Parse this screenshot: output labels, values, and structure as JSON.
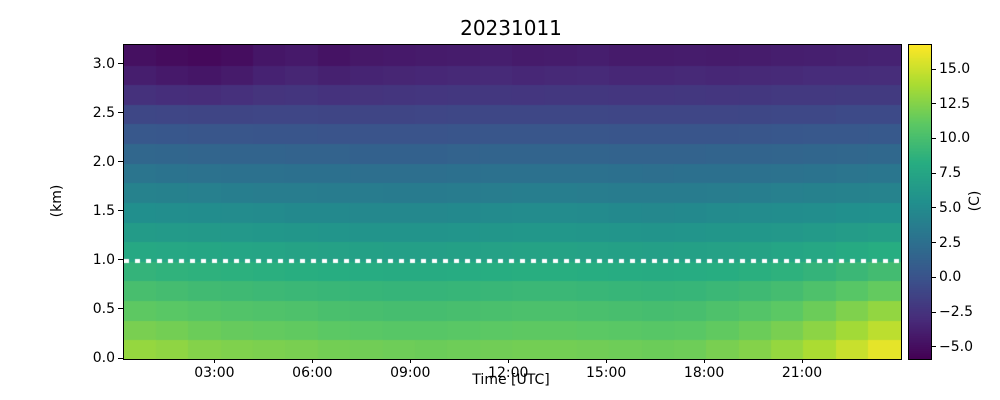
{
  "figure": {
    "background": "#ffffff",
    "dotted_line_color": "#ffffff"
  },
  "chart_data": {
    "type": "heatmap",
    "title": "20231011",
    "xlabel": "Time [UTC]",
    "ylabel": "(km)",
    "colorbar_label": "(C)",
    "colormap": "viridis",
    "vmin": -5.8,
    "vmax": 16.8,
    "x_range_hours": [
      0.2,
      24.0
    ],
    "y_range_km": [
      0.0,
      3.2
    ],
    "xtick_hours": [
      3,
      6,
      9,
      12,
      15,
      18,
      21
    ],
    "xtick_labels": [
      "03:00",
      "06:00",
      "09:00",
      "12:00",
      "15:00",
      "18:00",
      "21:00"
    ],
    "ytick_km": [
      0.0,
      0.5,
      1.0,
      1.5,
      2.0,
      2.5,
      3.0
    ],
    "ytick_labels": [
      "0.0",
      "0.5",
      "1.0",
      "1.5",
      "2.0",
      "2.5",
      "3.0"
    ],
    "colorbar_tick_values": [
      15.0,
      12.5,
      10.0,
      7.5,
      5.0,
      2.5,
      0.0,
      -2.5,
      -5.0
    ],
    "colorbar_tick_labels": [
      "15.0",
      "12.5",
      "10.0",
      "7.5",
      "5.0",
      "2.5",
      "0.0",
      "−2.5",
      "−5.0"
    ],
    "dotted_line_km": 1.0,
    "x_hours": [
      0.5,
      1.5,
      2.5,
      3.5,
      4.5,
      5.5,
      6.5,
      7.5,
      8.5,
      9.5,
      10.5,
      11.5,
      12.5,
      13.5,
      14.5,
      15.5,
      16.5,
      17.5,
      18.5,
      19.5,
      20.5,
      21.5,
      22.5,
      23.5
    ],
    "y_km": [
      0.1,
      0.3,
      0.5,
      0.7,
      0.9,
      1.1,
      1.3,
      1.5,
      1.7,
      1.9,
      2.1,
      2.3,
      2.5,
      2.7,
      2.9,
      3.1
    ],
    "values_units": "C",
    "values": [
      [
        13.2,
        13.0,
        12.6,
        12.4,
        12.3,
        12.2,
        12.0,
        11.9,
        11.8,
        11.7,
        11.8,
        11.9,
        12.0,
        12.0,
        11.9,
        11.8,
        11.7,
        11.8,
        12.2,
        12.6,
        13.2,
        14.0,
        15.0,
        16.0
      ],
      [
        12.2,
        12.0,
        11.7,
        11.5,
        11.4,
        11.3,
        11.1,
        11.0,
        10.9,
        10.9,
        11.0,
        11.1,
        11.2,
        11.2,
        11.1,
        11.0,
        10.9,
        11.0,
        11.3,
        11.7,
        12.2,
        12.9,
        13.7,
        14.6
      ],
      [
        11.2,
        11.0,
        10.8,
        10.6,
        10.5,
        10.4,
        10.2,
        10.1,
        10.0,
        10.0,
        10.1,
        10.2,
        10.3,
        10.3,
        10.2,
        10.1,
        10.0,
        10.1,
        10.4,
        10.7,
        11.1,
        11.7,
        12.4,
        13.1
      ],
      [
        10.1,
        9.9,
        9.7,
        9.6,
        9.5,
        9.4,
        9.3,
        9.2,
        9.1,
        9.1,
        9.2,
        9.3,
        9.4,
        9.4,
        9.3,
        9.2,
        9.1,
        9.2,
        9.4,
        9.6,
        9.9,
        10.4,
        10.9,
        11.4
      ],
      [
        9.0,
        8.8,
        8.7,
        8.6,
        8.5,
        8.4,
        8.3,
        8.2,
        8.1,
        8.1,
        8.2,
        8.3,
        8.4,
        8.4,
        8.3,
        8.2,
        8.1,
        8.2,
        8.3,
        8.5,
        8.7,
        9.0,
        9.4,
        9.8
      ],
      [
        7.8,
        7.7,
        7.6,
        7.5,
        7.4,
        7.3,
        7.2,
        7.1,
        7.0,
        7.0,
        7.1,
        7.2,
        7.3,
        7.3,
        7.2,
        7.1,
        7.0,
        7.1,
        7.2,
        7.3,
        7.5,
        7.7,
        8.0,
        8.3
      ],
      [
        6.6,
        6.5,
        6.4,
        6.3,
        6.2,
        6.1,
        6.0,
        5.9,
        5.9,
        5.9,
        6.0,
        6.1,
        6.2,
        6.2,
        6.1,
        6.0,
        5.9,
        6.0,
        6.1,
        6.2,
        6.3,
        6.5,
        6.7,
        6.9
      ],
      [
        5.4,
        5.3,
        5.2,
        5.1,
        5.0,
        4.9,
        4.9,
        4.8,
        4.8,
        4.8,
        4.9,
        5.0,
        5.1,
        5.1,
        5.0,
        4.9,
        4.8,
        4.9,
        5.0,
        5.1,
        5.2,
        5.3,
        5.5,
        5.6
      ],
      [
        4.2,
        4.1,
        4.0,
        3.9,
        3.8,
        3.8,
        3.7,
        3.7,
        3.6,
        3.6,
        3.7,
        3.8,
        3.9,
        3.9,
        3.8,
        3.7,
        3.7,
        3.7,
        3.8,
        3.9,
        4.0,
        4.1,
        4.2,
        4.3
      ],
      [
        3.0,
        2.9,
        2.8,
        2.7,
        2.7,
        2.6,
        2.6,
        2.5,
        2.5,
        2.5,
        2.6,
        2.7,
        2.7,
        2.7,
        2.7,
        2.6,
        2.5,
        2.6,
        2.6,
        2.7,
        2.8,
        2.9,
        3.0,
        3.1
      ],
      [
        1.8,
        1.7,
        1.6,
        1.5,
        1.5,
        1.4,
        1.4,
        1.3,
        1.3,
        1.3,
        1.4,
        1.5,
        1.5,
        1.5,
        1.5,
        1.4,
        1.4,
        1.4,
        1.5,
        1.5,
        1.6,
        1.7,
        1.8,
        1.9
      ],
      [
        0.5,
        0.4,
        0.3,
        0.3,
        0.2,
        0.2,
        0.1,
        0.1,
        0.1,
        0.1,
        0.2,
        0.3,
        0.3,
        0.3,
        0.3,
        0.2,
        0.2,
        0.2,
        0.2,
        0.3,
        0.4,
        0.5,
        0.5,
        0.6
      ],
      [
        -0.9,
        -1.0,
        -1.1,
        -1.1,
        -1.0,
        -1.0,
        -1.1,
        -1.1,
        -1.1,
        -1.0,
        -0.9,
        -0.9,
        -0.9,
        -0.9,
        -0.9,
        -1.0,
        -1.0,
        -1.0,
        -1.0,
        -0.9,
        -0.8,
        -0.8,
        -0.7,
        -0.7
      ],
      [
        -2.6,
        -2.8,
        -2.9,
        -2.7,
        -2.4,
        -2.3,
        -2.5,
        -2.4,
        -2.3,
        -2.2,
        -2.1,
        -2.1,
        -2.2,
        -2.1,
        -2.1,
        -2.2,
        -2.2,
        -2.1,
        -2.2,
        -2.1,
        -2.0,
        -2.0,
        -1.9,
        -1.9
      ],
      [
        -3.9,
        -4.2,
        -4.4,
        -4.1,
        -3.6,
        -3.4,
        -3.7,
        -3.5,
        -3.4,
        -3.3,
        -3.2,
        -3.1,
        -3.3,
        -3.2,
        -3.1,
        -3.3,
        -3.3,
        -3.2,
        -3.3,
        -3.2,
        -3.1,
        -3.0,
        -3.0,
        -2.9
      ],
      [
        -4.8,
        -5.1,
        -5.3,
        -5.0,
        -4.4,
        -4.2,
        -4.6,
        -4.3,
        -4.2,
        -4.1,
        -4.0,
        -3.9,
        -4.1,
        -4.0,
        -3.9,
        -4.1,
        -4.1,
        -4.0,
        -4.1,
        -4.0,
        -3.9,
        -3.8,
        -3.7,
        -3.6
      ]
    ]
  }
}
